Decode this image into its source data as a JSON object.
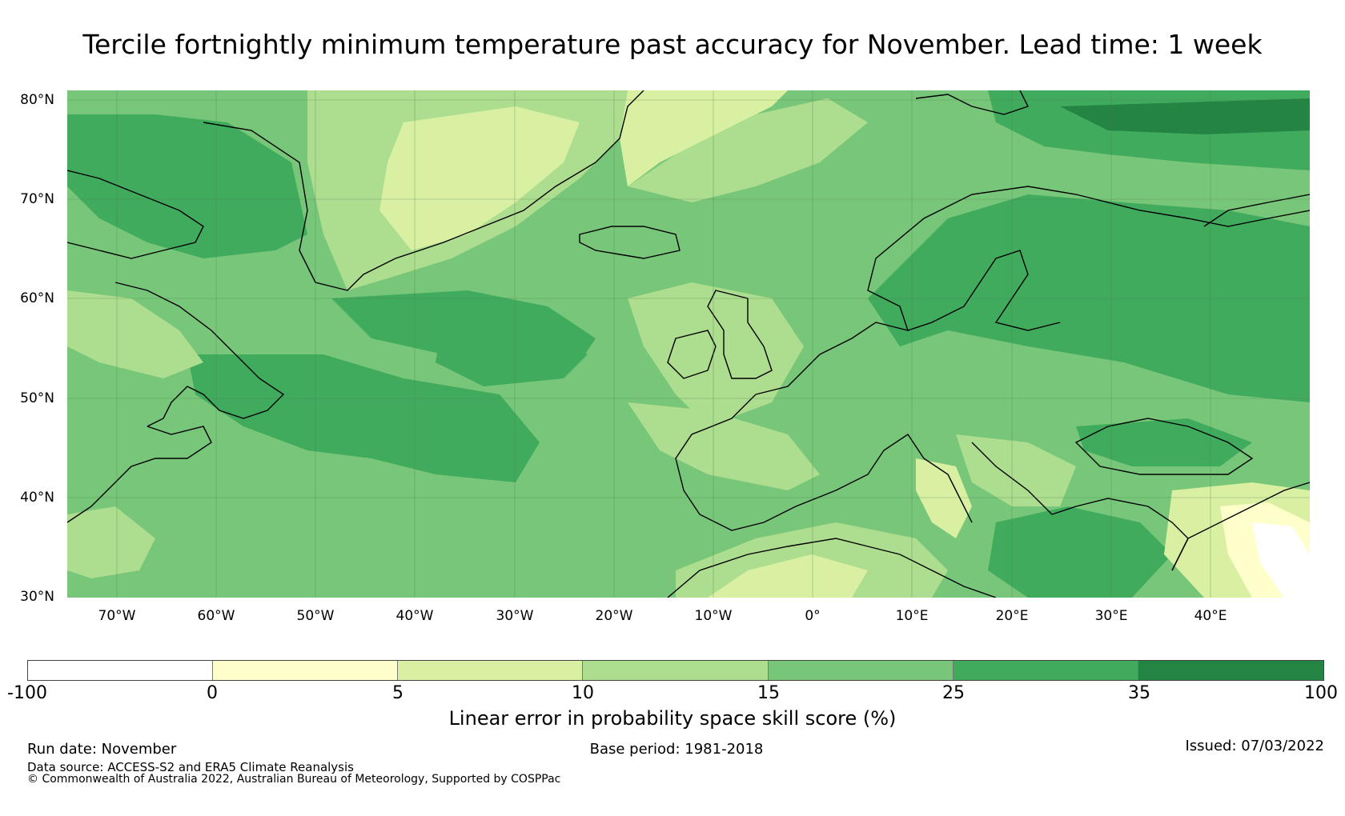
{
  "title": "Tercile fortnightly minimum temperature past accuracy for November. Lead time: 1 week",
  "map": {
    "lat_labels": [
      "80°N",
      "70°N",
      "60°N",
      "50°N",
      "40°N",
      "30°N"
    ],
    "lon_labels": [
      "70°W",
      "60°W",
      "50°W",
      "40°W",
      "30°W",
      "20°W",
      "10°W",
      "0°",
      "10°E",
      "20°E",
      "30°E",
      "40°E"
    ],
    "lat_values": [
      80,
      70,
      60,
      50,
      40,
      30
    ],
    "lon_values": [
      -70,
      -60,
      -50,
      -40,
      -30,
      -20,
      -10,
      0,
      10,
      20,
      30,
      40
    ],
    "extent": {
      "lon_min": -75,
      "lon_max": 50,
      "lat_min": 30,
      "lat_max": 81
    }
  },
  "colorbar": {
    "ticks": [
      "-100",
      "0",
      "5",
      "10",
      "15",
      "25",
      "35",
      "100"
    ],
    "colors": [
      "#ffffff",
      "#ffffcc",
      "#d9f0a3",
      "#addd8e",
      "#78c679",
      "#41ab5d",
      "#238443"
    ],
    "label": "Linear error in probability space skill score (%)"
  },
  "footer": {
    "run_date": "Run date: November",
    "base_period": "Base period: 1981-2018",
    "issued": "Issued: 07/03/2022",
    "data_source": "Data source: ACCESS-S2 and ERA5 Climate Reanalysis",
    "copyright": "© Commonwealth of Australia 2022, Australian Bureau of Meteorology, Supported by COSPPac"
  }
}
